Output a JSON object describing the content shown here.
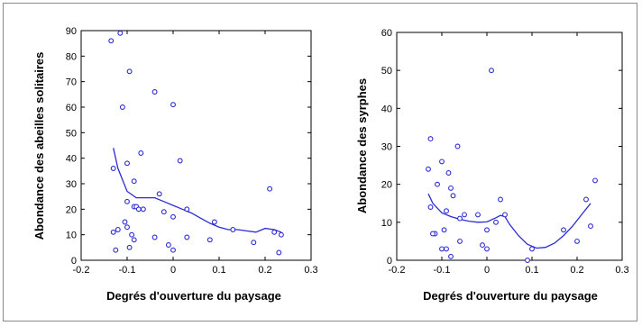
{
  "chart_data": [
    {
      "type": "scatter",
      "xlabel": "Degrés d'ouverture du paysage",
      "ylabel": "Abondance des abeilles solitaires",
      "xlim": [
        -0.2,
        0.3
      ],
      "ylim": [
        0,
        90
      ],
      "xticks": [
        "-0.2",
        "-0.1",
        "0",
        "0.1",
        "0.2",
        "0.3"
      ],
      "yticks": [
        "0",
        "10",
        "20",
        "30",
        "40",
        "50",
        "60",
        "70",
        "80",
        "90"
      ],
      "xtick_values": [
        -0.2,
        -0.1,
        0,
        0.1,
        0.2,
        0.3
      ],
      "ytick_values": [
        0,
        10,
        20,
        30,
        40,
        50,
        60,
        70,
        80,
        90
      ],
      "points": [
        [
          -0.135,
          86
        ],
        [
          -0.115,
          89
        ],
        [
          -0.095,
          74
        ],
        [
          -0.11,
          60
        ],
        [
          -0.04,
          66
        ],
        [
          0.0,
          61
        ],
        [
          -0.07,
          42
        ],
        [
          0.015,
          39
        ],
        [
          -0.13,
          36
        ],
        [
          -0.1,
          38
        ],
        [
          -0.085,
          31
        ],
        [
          -0.1,
          23
        ],
        [
          -0.085,
          21
        ],
        [
          -0.08,
          21
        ],
        [
          -0.075,
          20
        ],
        [
          -0.065,
          20
        ],
        [
          -0.03,
          26
        ],
        [
          -0.02,
          19
        ],
        [
          0.0,
          17
        ],
        [
          -0.105,
          15
        ],
        [
          -0.12,
          12
        ],
        [
          -0.1,
          13
        ],
        [
          -0.09,
          10
        ],
        [
          -0.13,
          11
        ],
        [
          -0.085,
          8
        ],
        [
          -0.125,
          4
        ],
        [
          -0.095,
          5
        ],
        [
          -0.04,
          9
        ],
        [
          -0.01,
          6
        ],
        [
          0.0,
          4
        ],
        [
          0.03,
          20
        ],
        [
          0.03,
          9
        ],
        [
          0.08,
          8
        ],
        [
          0.09,
          15
        ],
        [
          0.13,
          12
        ],
        [
          0.175,
          7
        ],
        [
          0.21,
          28
        ],
        [
          0.22,
          11
        ],
        [
          0.235,
          10
        ],
        [
          0.23,
          3
        ]
      ],
      "trend": [
        [
          -0.13,
          44
        ],
        [
          -0.12,
          36
        ],
        [
          -0.1,
          27
        ],
        [
          -0.08,
          24.5
        ],
        [
          -0.06,
          24.5
        ],
        [
          -0.04,
          24.5
        ],
        [
          -0.02,
          23
        ],
        [
          0.0,
          21.5
        ],
        [
          0.02,
          20
        ],
        [
          0.04,
          18.5
        ],
        [
          0.06,
          16.5
        ],
        [
          0.08,
          14.5
        ],
        [
          0.1,
          13
        ],
        [
          0.12,
          12
        ],
        [
          0.14,
          12
        ],
        [
          0.16,
          11.5
        ],
        [
          0.18,
          11
        ],
        [
          0.2,
          12.5
        ],
        [
          0.22,
          12
        ],
        [
          0.235,
          11
        ]
      ],
      "color": "#2b2bd6"
    },
    {
      "type": "scatter",
      "xlabel": "Degrés d'ouverture du paysage",
      "ylabel": "Abondance des syrphes",
      "xlim": [
        -0.2,
        0.3
      ],
      "ylim": [
        0,
        60
      ],
      "xticks": [
        "-0.2",
        "-0.1",
        "0",
        "0.1",
        "0.2",
        "0.3"
      ],
      "yticks": [
        "0",
        "10",
        "20",
        "30",
        "40",
        "50",
        "60"
      ],
      "xtick_values": [
        -0.2,
        -0.1,
        0,
        0.1,
        0.2,
        0.3
      ],
      "ytick_values": [
        0,
        10,
        20,
        30,
        40,
        50,
        60
      ],
      "points": [
        [
          0.01,
          50
        ],
        [
          -0.125,
          32
        ],
        [
          -0.065,
          30
        ],
        [
          -0.1,
          26
        ],
        [
          -0.13,
          24
        ],
        [
          -0.085,
          23
        ],
        [
          -0.11,
          20
        ],
        [
          -0.08,
          19
        ],
        [
          -0.075,
          17
        ],
        [
          0.03,
          16
        ],
        [
          -0.09,
          13
        ],
        [
          -0.125,
          14
        ],
        [
          -0.02,
          12
        ],
        [
          -0.05,
          12
        ],
        [
          -0.06,
          11
        ],
        [
          0.04,
          12
        ],
        [
          0.22,
          16
        ],
        [
          0.24,
          21
        ],
        [
          -0.115,
          7
        ],
        [
          -0.12,
          7
        ],
        [
          -0.095,
          8
        ],
        [
          -0.06,
          5
        ],
        [
          -0.01,
          4
        ],
        [
          0.0,
          3
        ],
        [
          -0.1,
          3
        ],
        [
          -0.09,
          3
        ],
        [
          0.0,
          8
        ],
        [
          0.02,
          10
        ],
        [
          0.1,
          3
        ],
        [
          0.17,
          8
        ],
        [
          0.2,
          5
        ],
        [
          0.23,
          9
        ],
        [
          0.09,
          0
        ],
        [
          -0.08,
          1
        ]
      ],
      "trend": [
        [
          -0.13,
          17.5
        ],
        [
          -0.12,
          15
        ],
        [
          -0.1,
          12.5
        ],
        [
          -0.08,
          11.5
        ],
        [
          -0.06,
          10.8
        ],
        [
          -0.04,
          10.3
        ],
        [
          -0.02,
          10.0
        ],
        [
          0.0,
          10.1
        ],
        [
          0.02,
          11.2
        ],
        [
          0.03,
          11.8
        ],
        [
          0.04,
          11.5
        ],
        [
          0.05,
          9.5
        ],
        [
          0.07,
          6.5
        ],
        [
          0.09,
          4.2
        ],
        [
          0.11,
          3.2
        ],
        [
          0.13,
          3.4
        ],
        [
          0.15,
          4.5
        ],
        [
          0.17,
          6.5
        ],
        [
          0.19,
          9
        ],
        [
          0.21,
          12
        ],
        [
          0.23,
          15
        ]
      ],
      "color": "#2b2bd6"
    }
  ]
}
